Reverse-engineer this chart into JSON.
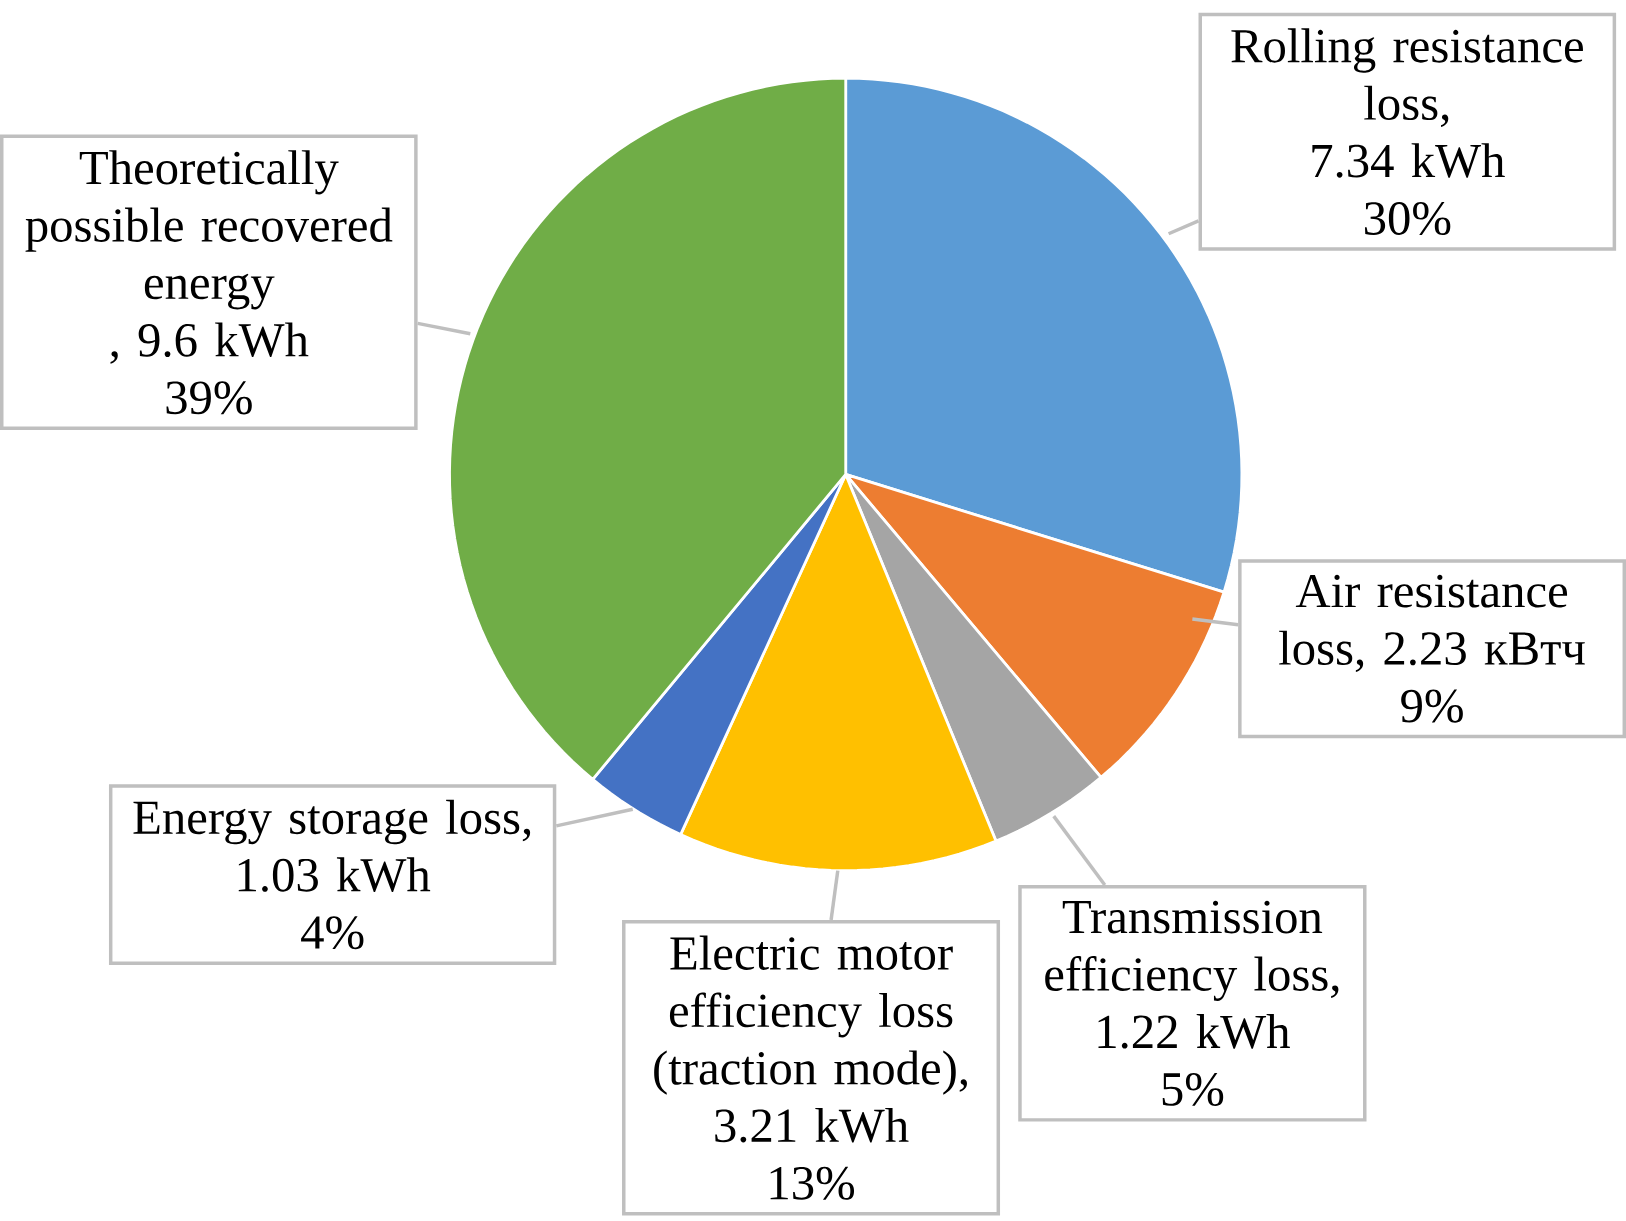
{
  "chart_data": {
    "type": "pie",
    "categories": [
      "Rolling resistance loss",
      "Air resistance loss",
      "Transmission efficiency loss",
      "Electric motor efficiency loss (traction mode)",
      "Energy storage loss",
      "Theoretically possible recovered energy "
    ],
    "values": [
      7.34,
      2.23,
      1.22,
      3.21,
      1.03,
      9.6
    ],
    "value_labels": [
      ", 7.34 kWh 30%",
      ", 2.23 кВтч 9%",
      ", 1.22 kWh 5%",
      ", 3.21 kWh 13%",
      ", 1.03 kWh 4%",
      ", 9.6 kWh 39%"
    ],
    "colors": [
      "#5b9bd5",
      "#ed7d31",
      "#a5a5a5",
      "#ffc000",
      "#4472c4",
      "#70ad47"
    ]
  }
}
